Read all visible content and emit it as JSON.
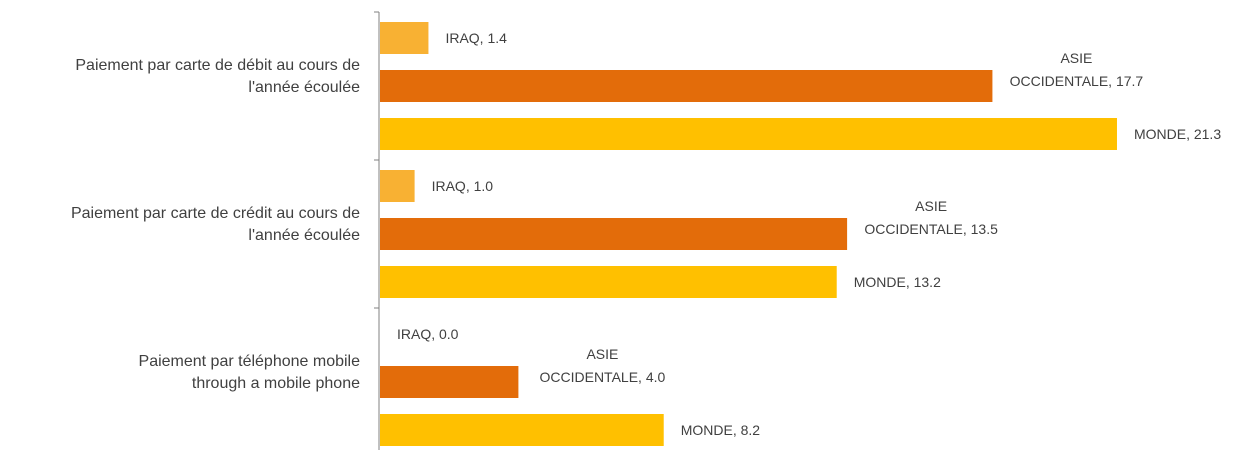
{
  "chart_data": {
    "type": "bar",
    "orientation": "horizontal",
    "title": "",
    "xlabel": "",
    "ylabel": "",
    "xlim": [
      0,
      22
    ],
    "grid": false,
    "legend": "none",
    "categories": [
      {
        "lines": [
          "Paiement par carte de débit au cours de",
          "l'année écoulée"
        ],
        "bars": [
          {
            "series": "IRAQ",
            "value": 1.4,
            "label_lines": [
              "IRAQ, 1.4"
            ]
          },
          {
            "series": "ASIE OCCIDENTALE",
            "value": 17.7,
            "label_lines": [
              "ASIE",
              "OCCIDENTALE, 17.7"
            ]
          },
          {
            "series": "MONDE",
            "value": 21.3,
            "label_lines": [
              "MONDE, 21.3"
            ]
          }
        ]
      },
      {
        "lines": [
          "Paiement par carte de crédit au cours de",
          "l'année écoulée"
        ],
        "bars": [
          {
            "series": "IRAQ",
            "value": 1.0,
            "label_lines": [
              "IRAQ, 1.0"
            ]
          },
          {
            "series": "ASIE OCCIDENTALE",
            "value": 13.5,
            "label_lines": [
              "ASIE",
              "OCCIDENTALE, 13.5"
            ]
          },
          {
            "series": "MONDE",
            "value": 13.2,
            "label_lines": [
              "MONDE, 13.2"
            ]
          }
        ]
      },
      {
        "lines": [
          "Paiement par téléphone mobile",
          "through a mobile phone"
        ],
        "bars": [
          {
            "series": "IRAQ",
            "value": 0.0,
            "label_lines": [
              "IRAQ, 0.0"
            ]
          },
          {
            "series": "ASIE OCCIDENTALE",
            "value": 4.0,
            "label_lines": [
              "ASIE",
              "OCCIDENTALE, 4.0"
            ]
          },
          {
            "series": "MONDE",
            "value": 8.2,
            "label_lines": [
              "MONDE, 8.2"
            ]
          }
        ]
      }
    ],
    "colors": {
      "IRAQ": "#F8B133",
      "ASIE OCCIDENTALE": "#E36C0A",
      "MONDE": "#FFC000",
      "axis": "#808080",
      "text": "#404040"
    }
  }
}
